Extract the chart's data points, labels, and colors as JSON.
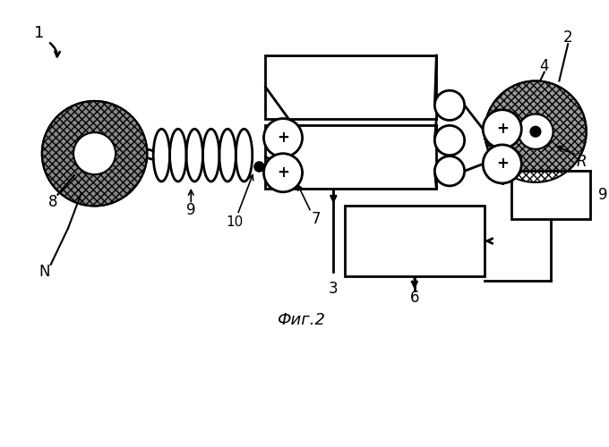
{
  "title": "Фиг.2",
  "background_color": "#ffffff",
  "fig_width": 6.8,
  "fig_height": 5.0,
  "dpi": 100
}
